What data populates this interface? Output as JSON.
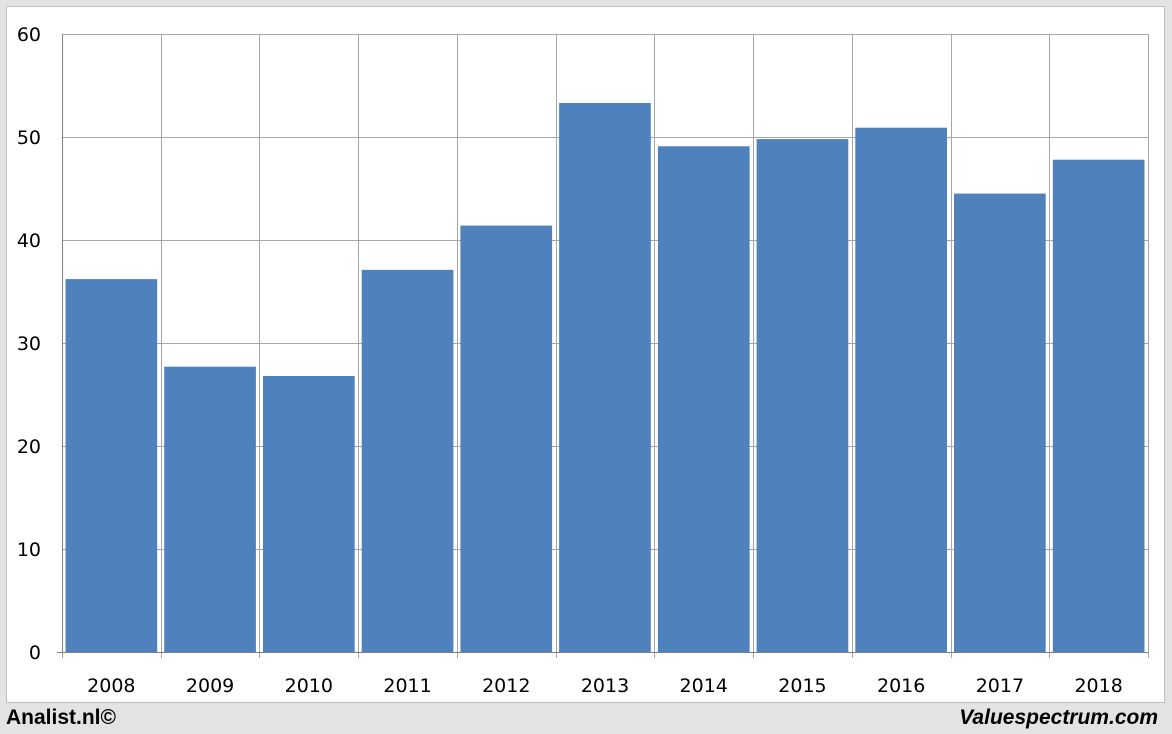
{
  "chart_data": {
    "type": "bar",
    "title": "",
    "xlabel": "",
    "ylabel": "",
    "categories": [
      "2008",
      "2009",
      "2010",
      "2011",
      "2012",
      "2013",
      "2014",
      "2015",
      "2016",
      "2017",
      "2018"
    ],
    "values": [
      36.2,
      27.7,
      26.8,
      37.1,
      41.4,
      53.3,
      49.1,
      49.8,
      50.9,
      44.5,
      47.8
    ],
    "ylim": [
      0,
      60
    ],
    "yticks": [
      0,
      10,
      20,
      30,
      40,
      50,
      60
    ],
    "grid": true,
    "legend": "none",
    "bar_color": "#4f81bd",
    "grid_color": "#a6a6a6"
  },
  "footer": {
    "left": "Analist.nl©",
    "right": "Valuespectrum.com"
  }
}
